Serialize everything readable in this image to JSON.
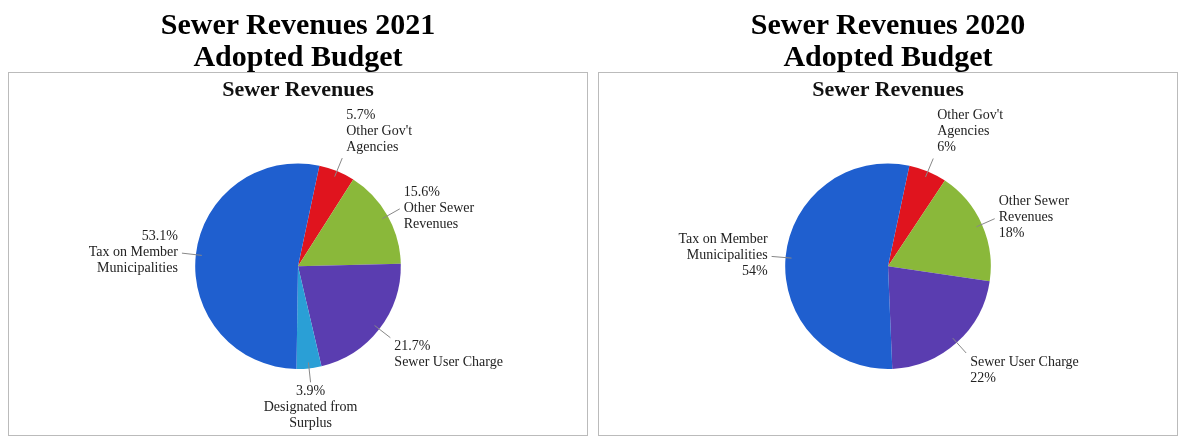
{
  "chart_data": [
    {
      "type": "pie",
      "title": "Sewer Revenues 2021 Adopted Budget",
      "subtitle": "Sewer Revenues",
      "categories": [
        "Other Gov't Agencies",
        "Other Sewer Revenues",
        "Sewer User Charge",
        "Designated from Surplus",
        "Tax on Member Municipalities"
      ],
      "values": [
        5.7,
        15.6,
        21.7,
        3.9,
        53.1
      ],
      "value_labels": [
        "5.7%",
        "15.6%",
        "21.7%",
        "3.9%",
        "53.1%"
      ],
      "colors": [
        "#e0141e",
        "#8ab83a",
        "#5a3db0",
        "#2a9fd6",
        "#1f5fcf"
      ]
    },
    {
      "type": "pie",
      "title": "Sewer Revenues 2020 Adopted Budget",
      "subtitle": "Sewer Revenues",
      "categories": [
        "Other Gov't Agencies",
        "Other Sewer Revenues",
        "Sewer User Charge",
        "Tax on Member Municipalities"
      ],
      "values": [
        6,
        18,
        22,
        54
      ],
      "value_labels": [
        "6%",
        "18%",
        "22%",
        "54%"
      ],
      "colors": [
        "#e0141e",
        "#8ab83a",
        "#5a3db0",
        "#1f5fcf"
      ]
    }
  ]
}
